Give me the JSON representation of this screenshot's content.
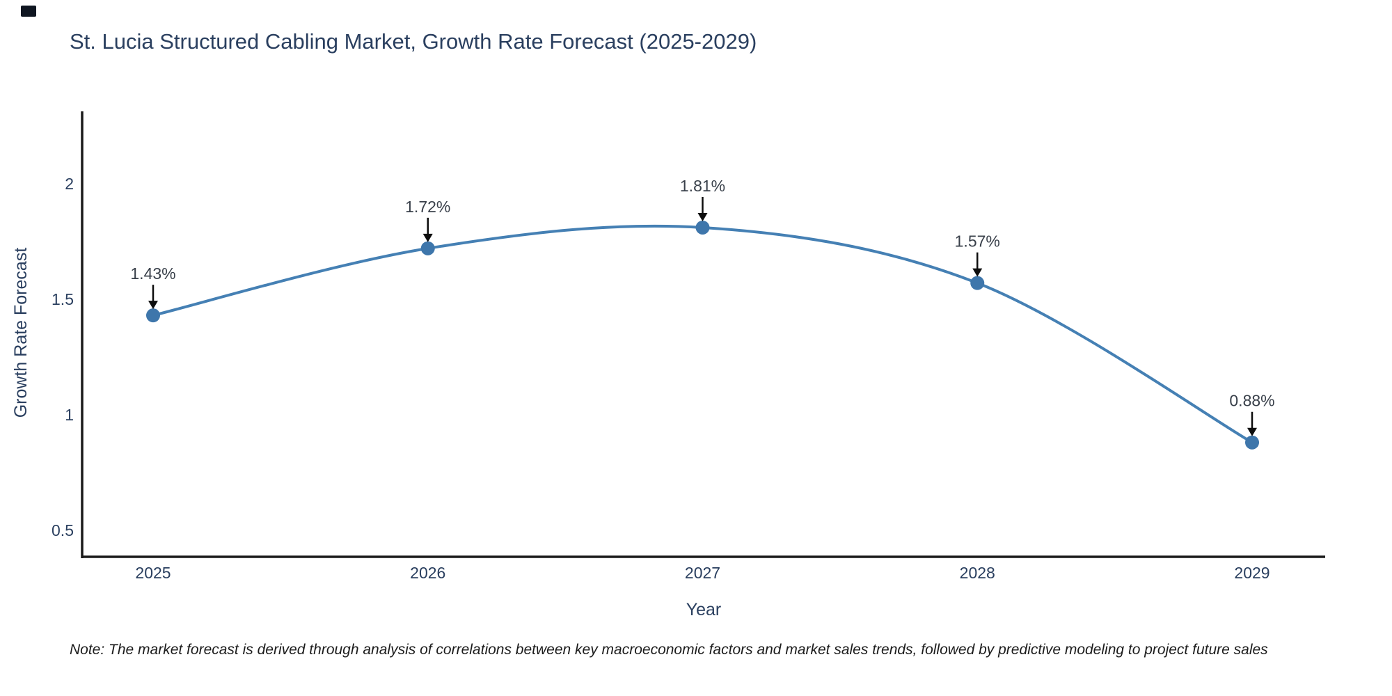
{
  "page": {
    "note": "Note: The market forecast is derived through analysis of correlations between key macroeconomic factors and market sales trends, followed by predictive modeling to project future sales"
  },
  "chart_data": {
    "type": "line",
    "title": "St. Lucia Structured Cabling Market, Growth Rate Forecast (2025-2029)",
    "xlabel": "Year",
    "ylabel": "Growth Rate Forecast",
    "x": [
      2025,
      2026,
      2027,
      2028,
      2029
    ],
    "values": [
      1.43,
      1.72,
      1.81,
      1.57,
      0.88
    ],
    "point_labels": [
      "1.43%",
      "1.72%",
      "1.81%",
      "1.57%",
      "0.88%"
    ],
    "yticks": [
      0.5,
      1,
      1.5,
      2
    ],
    "ylim": [
      0.39,
      2.31
    ],
    "line_shape": "spline",
    "grid": false,
    "legend_position": "none",
    "colors": {
      "line": "#4580b4",
      "marker": "#3e76ab",
      "axis": "#1a1a1a",
      "tick_text": "#2a3f5f",
      "annotation_text": "#39404a",
      "arrow": "#0d0d0d"
    }
  }
}
